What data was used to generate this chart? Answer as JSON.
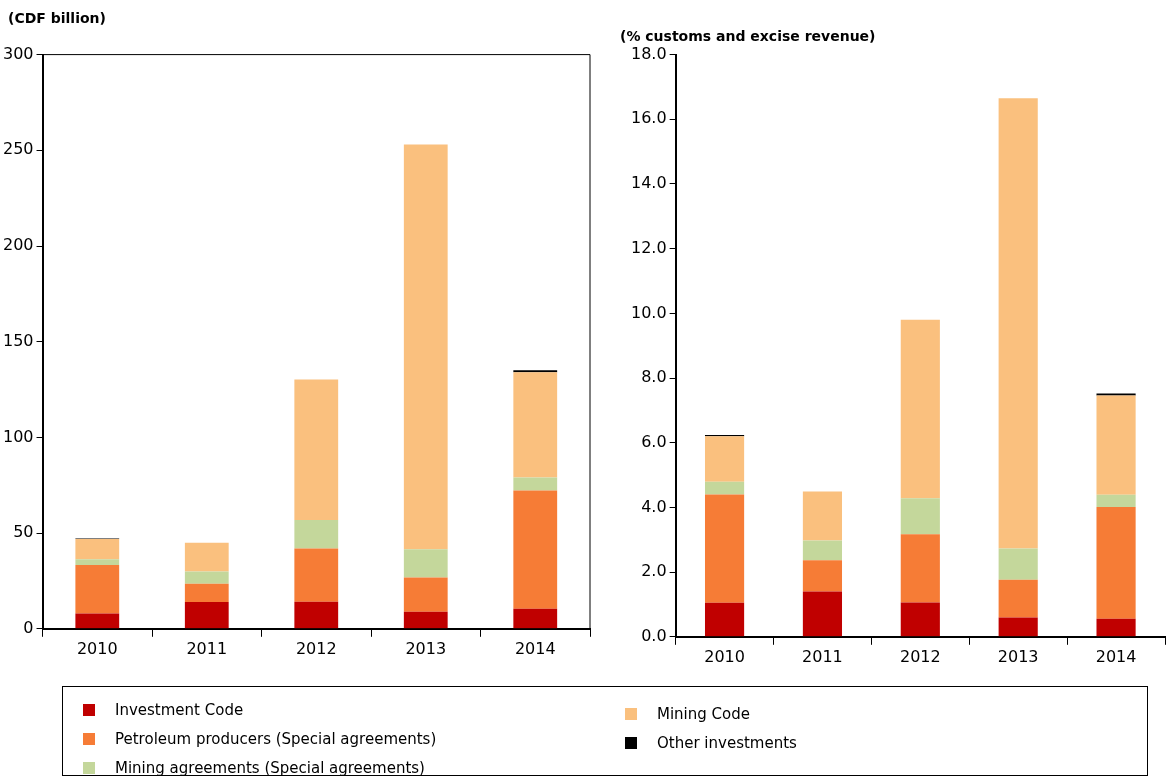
{
  "chart_data": [
    {
      "type": "bar",
      "ylabel": "(CDF billion)",
      "categories": [
        "2010",
        "2011",
        "2012",
        "2013",
        "2014"
      ],
      "stacked": true,
      "ylim": [
        0,
        300
      ],
      "yticks": [
        0,
        50,
        100,
        150,
        200,
        250,
        300
      ],
      "grid": false,
      "legend": "bottom",
      "series": [
        {
          "name": "Investment Code",
          "color": "#c00000",
          "values": [
            8,
            14,
            14.1,
            8.9,
            10.5
          ]
        },
        {
          "name": "Petroleum producers (Special agreements)",
          "color": "#f67c36",
          "values": [
            25.3,
            9.5,
            27.9,
            17.9,
            61.8
          ]
        },
        {
          "name": "Mining agreements (Special agreements)",
          "color": "#c4d79b",
          "values": [
            3.1,
            6.5,
            14.8,
            14.7,
            6.8
          ]
        },
        {
          "name": "Mining Code",
          "color": "#fac07e",
          "values": [
            10.5,
            15,
            73.5,
            211.5,
            55
          ]
        },
        {
          "name": "Other investments",
          "color": "#000000",
          "values": [
            0.3,
            0,
            0,
            0,
            1
          ]
        }
      ]
    },
    {
      "type": "bar",
      "ylabel": "(% customs and excise revenue)",
      "categories": [
        "2010",
        "2011",
        "2012",
        "2013",
        "2014"
      ],
      "stacked": true,
      "ylim": [
        0,
        18
      ],
      "yticks": [
        {
          "value": 0,
          "label": "0.0"
        },
        {
          "value": 2,
          "label": "2.0"
        },
        {
          "value": 4,
          "label": "4.0"
        },
        {
          "value": 6,
          "label": "6.0"
        },
        {
          "value": 8,
          "label": "8.0"
        },
        {
          "value": 10,
          "label": "10.0"
        },
        {
          "value": 12,
          "label": "12.0"
        },
        {
          "value": 14,
          "label": "14.0"
        },
        {
          "value": 16,
          "label": "16.0"
        },
        {
          "value": 18,
          "label": "18.0"
        }
      ],
      "grid": false,
      "series": [
        {
          "color": "#c00000",
          "values": [
            1.05,
            1.4,
            1.06,
            0.6,
            0.56
          ]
        },
        {
          "color": "#f67c36",
          "values": [
            3.35,
            0.97,
            2.11,
            1.16,
            3.45
          ]
        },
        {
          "color": "#c4d79b",
          "values": [
            0.39,
            0.61,
            1.11,
            0.97,
            0.38
          ]
        },
        {
          "color": "#fac07e",
          "values": [
            1.41,
            1.51,
            5.52,
            13.92,
            3.07
          ]
        },
        {
          "color": "#000000",
          "values": [
            0.04,
            0,
            0,
            0,
            0.06
          ]
        }
      ]
    }
  ]
}
